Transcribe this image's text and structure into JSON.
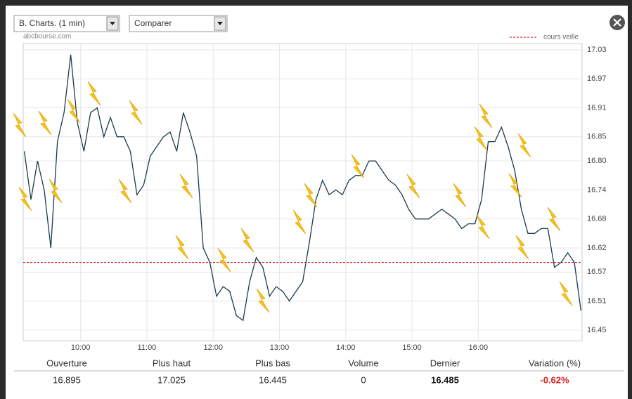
{
  "toolbar": {
    "period": "B. Charts. (1 min)",
    "compare": "Comparer"
  },
  "watermark": "abcbourse.com",
  "chart_data": {
    "type": "line",
    "x": [
      549,
      555,
      561,
      567,
      573,
      579,
      585,
      591,
      597,
      603,
      609,
      615,
      621,
      627,
      633,
      639,
      645,
      651,
      657,
      663,
      669,
      675,
      681,
      687,
      693,
      699,
      705,
      711,
      717,
      723,
      729,
      735,
      741,
      747,
      753,
      759,
      765,
      771,
      777,
      783,
      789,
      795,
      801,
      807,
      813,
      819,
      825,
      831,
      837,
      843,
      849,
      855,
      861,
      867,
      873,
      879,
      885,
      891,
      897,
      903,
      909,
      915,
      921,
      927,
      933,
      939,
      945,
      951,
      957,
      963,
      969,
      975,
      981,
      987,
      993,
      999,
      1005,
      1011,
      1017,
      1023,
      1029,
      1035,
      1041,
      1047,
      1053
    ],
    "series": [
      {
        "color": "#1b3a4b",
        "values": [
          16.82,
          16.72,
          16.8,
          16.74,
          16.62,
          16.84,
          16.9,
          17.02,
          16.88,
          16.82,
          16.9,
          16.91,
          16.85,
          16.89,
          16.85,
          16.85,
          16.82,
          16.73,
          16.75,
          16.81,
          16.83,
          16.85,
          16.86,
          16.82,
          16.9,
          16.86,
          16.81,
          16.62,
          16.59,
          16.52,
          16.54,
          16.53,
          16.48,
          16.47,
          16.55,
          16.6,
          16.58,
          16.52,
          16.54,
          16.53,
          16.51,
          16.53,
          16.55,
          16.63,
          16.72,
          16.76,
          16.73,
          16.74,
          16.73,
          16.76,
          16.77,
          16.77,
          16.8,
          16.8,
          16.78,
          16.76,
          16.75,
          16.73,
          16.7,
          16.68,
          16.68,
          16.68,
          16.69,
          16.7,
          16.69,
          16.68,
          16.66,
          16.67,
          16.67,
          16.72,
          16.84,
          16.84,
          16.87,
          16.83,
          16.78,
          16.7,
          16.65,
          16.65,
          16.66,
          16.66,
          16.58,
          16.59,
          16.61,
          16.59,
          16.49
        ]
      }
    ],
    "reference": {
      "name": "cours veille",
      "value": 16.59,
      "color": "#cc0000"
    },
    "xlim": [
      548,
      1054
    ],
    "xticks": [
      {
        "value": 600,
        "label": "10:00"
      },
      {
        "value": 660,
        "label": "11:00"
      },
      {
        "value": 720,
        "label": "12:00"
      },
      {
        "value": 780,
        "label": "13:00"
      },
      {
        "value": 840,
        "label": "14:00"
      },
      {
        "value": 900,
        "label": "15:00"
      },
      {
        "value": 960,
        "label": "16:00"
      }
    ],
    "ylim": [
      16.428,
      17.043
    ],
    "yticks": [
      16.45,
      16.51,
      16.57,
      16.62,
      16.68,
      16.74,
      {
        "value": 16.8,
        "label": "16.80"
      },
      16.85,
      16.91,
      16.97,
      17.03
    ],
    "grid": true
  },
  "table": {
    "headers": [
      "Ouverture",
      "Plus haut",
      "Plus bas",
      "Volume",
      "Dernier",
      "Variation (%)"
    ],
    "values": [
      "16.895",
      "17.025",
      "16.445",
      "0",
      "16.485",
      "-0.62%"
    ]
  }
}
